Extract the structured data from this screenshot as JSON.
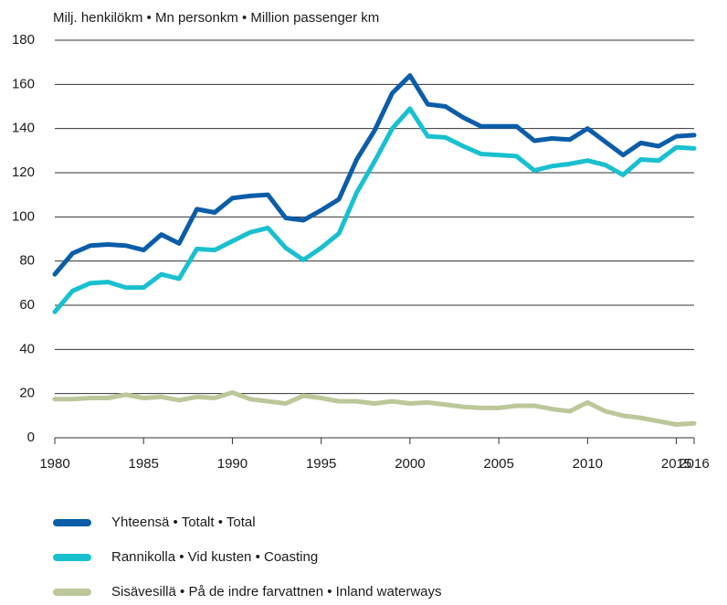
{
  "chart_data": {
    "type": "line",
    "ylabel": "Milj. henkilökm • Mn personkm • Million passenger km",
    "x": [
      1980,
      1981,
      1982,
      1983,
      1984,
      1985,
      1986,
      1987,
      1988,
      1989,
      1990,
      1991,
      1992,
      1993,
      1994,
      1995,
      1996,
      1997,
      1998,
      1999,
      2000,
      2001,
      2002,
      2003,
      2004,
      2005,
      2006,
      2007,
      2008,
      2009,
      2010,
      2011,
      2012,
      2013,
      2014,
      2015,
      2016
    ],
    "series": [
      {
        "name": "Yhteensä • Totalt • Total",
        "color": "#0b5da8",
        "values": [
          74,
          83.5,
          87,
          87.5,
          87,
          85,
          92,
          88,
          103.5,
          102,
          108.5,
          109.5,
          110,
          99.5,
          98.5,
          103,
          108,
          126,
          139,
          156,
          164,
          151,
          150,
          145,
          141,
          141,
          141,
          134.5,
          135.5,
          135,
          140,
          134,
          128,
          133.5,
          132,
          136.5,
          137
        ]
      },
      {
        "name": "Rannikolla • Vid kusten • Coasting",
        "color": "#19c0cf",
        "values": [
          57,
          66.5,
          70,
          70.5,
          68,
          68,
          74,
          72,
          85.5,
          85,
          89,
          93,
          95,
          86,
          80.5,
          86,
          92.5,
          111,
          125,
          140,
          149,
          136.5,
          136,
          132,
          128.5,
          128,
          127.5,
          121,
          123,
          124,
          125.5,
          123.5,
          119,
          126,
          125.5,
          131.5,
          131
        ]
      },
      {
        "name": "Sisävesillä • På de indre farvattnen • Inland waterways",
        "color": "#bcc79a",
        "values": [
          17.5,
          17.5,
          18,
          18,
          19.5,
          18,
          18.5,
          17,
          18.5,
          18,
          20.5,
          17.5,
          16.5,
          15.5,
          19,
          18,
          16.5,
          16.5,
          15.5,
          16.5,
          15.5,
          16,
          15,
          14,
          13.5,
          13.5,
          14.5,
          14.5,
          13,
          12,
          16,
          12,
          10,
          9,
          7.5,
          6,
          6.5
        ]
      }
    ],
    "xlim": [
      1980,
      2016
    ],
    "xticks": [
      1980,
      1985,
      1990,
      1995,
      2000,
      2005,
      2010,
      2015,
      2016
    ],
    "ylim": [
      0,
      180
    ],
    "yticks": [
      0,
      20,
      40,
      60,
      80,
      100,
      120,
      140,
      160,
      180
    ],
    "grid": true,
    "legend": "bottom"
  }
}
